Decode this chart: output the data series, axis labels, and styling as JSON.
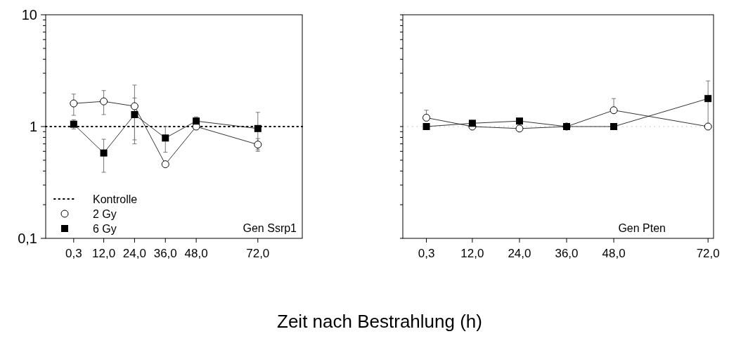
{
  "chart_data": [
    {
      "type": "line",
      "xlabel": "Zeit nach Bestrahlung (h)",
      "x": [
        0.3,
        12,
        24,
        36,
        48,
        72
      ],
      "xlim": [
        -10.6,
        89.3
      ],
      "ylim": [
        0.1,
        10
      ],
      "log": "y",
      "xticks": [
        {
          "value": 0.3,
          "label": "0,3"
        },
        {
          "value": 12,
          "label": "12,0"
        },
        {
          "value": 24,
          "label": "24,0"
        },
        {
          "value": 36,
          "label": "36,0"
        },
        {
          "value": 48,
          "label": "48,0"
        },
        {
          "value": 72,
          "label": "72,0"
        }
      ],
      "yticks": [
        {
          "value": 0.1,
          "label": "0,1"
        },
        {
          "value": 0.2,
          "label": null
        },
        {
          "value": 0.3,
          "label": null
        },
        {
          "value": 0.4,
          "label": null
        },
        {
          "value": 0.5,
          "label": null
        },
        {
          "value": 0.6,
          "label": null
        },
        {
          "value": 0.7,
          "label": null
        },
        {
          "value": 0.8,
          "label": null
        },
        {
          "value": 0.9,
          "label": null
        },
        1,
        {
          "value": 2,
          "label": null
        },
        {
          "value": 3,
          "label": null
        },
        {
          "value": 4,
          "label": null
        },
        {
          "value": 5,
          "label": null
        },
        {
          "value": 6,
          "label": null
        },
        {
          "value": 7,
          "label": null
        },
        {
          "value": 8,
          "label": null
        },
        {
          "value": 9,
          "label": null
        },
        10
      ],
      "legend": "bottom left",
      "annotations": [
        "Gen Ssrp1"
      ],
      "series": [
        {
          "name": "Kontrolle",
          "type": "line",
          "x": [
            -10.6,
            89.3
          ],
          "values": [
            1,
            1
          ],
          "color": "#000000",
          "line_style": "dotted",
          "marker": "none"
        },
        {
          "name": "2 Gy",
          "color": "#000000",
          "marker": "circle",
          "values": [
            1.61,
            1.68,
            1.52,
            0.46,
            1.0,
            0.69
          ],
          "errors": [
            [
              1.26,
              1.95
            ],
            [
              1.28,
              2.1
            ],
            [
              0.76,
              2.35
            ],
            null,
            null,
            [
              0.6,
              0.78
            ]
          ]
        },
        {
          "name": "6 Gy",
          "color": "#000000",
          "marker": "square",
          "values": [
            1.05,
            0.58,
            1.28,
            0.79,
            1.12,
            0.96
          ],
          "errors": [
            [
              0.95,
              1.15
            ],
            [
              0.39,
              0.77
            ],
            [
              0.7,
              1.8
            ],
            [
              0.59,
              1.0
            ],
            [
              1.05,
              1.22
            ],
            [
              0.62,
              1.34
            ]
          ]
        }
      ]
    },
    {
      "type": "line",
      "x": [
        0.3,
        12,
        24,
        36,
        48,
        72
      ],
      "xlim": [
        -5.7,
        73.4
      ],
      "ylim": [
        0.1,
        10
      ],
      "log": "y",
      "tick_labels": "x",
      "xticks": [
        {
          "value": 0.3,
          "label": "0,3"
        },
        {
          "value": 12,
          "label": "12,0"
        },
        {
          "value": 24,
          "label": "24,0"
        },
        {
          "value": 36,
          "label": "36,0"
        },
        {
          "value": 48,
          "label": "48,0"
        },
        {
          "value": 72,
          "label": "72,0"
        }
      ],
      "yticks": [
        {
          "value": 0.1,
          "label": null
        },
        {
          "value": 0.2,
          "label": null
        },
        {
          "value": 0.3,
          "label": null
        },
        {
          "value": 0.4,
          "label": null
        },
        {
          "value": 0.5,
          "label": null
        },
        {
          "value": 0.6,
          "label": null
        },
        {
          "value": 0.7,
          "label": null
        },
        {
          "value": 0.8,
          "label": null
        },
        {
          "value": 0.9,
          "label": null
        },
        {
          "value": 1,
          "label": null
        },
        {
          "value": 2,
          "label": null
        },
        {
          "value": 3,
          "label": null
        },
        {
          "value": 4,
          "label": null
        },
        {
          "value": 5,
          "label": null
        },
        {
          "value": 6,
          "label": null
        },
        {
          "value": 7,
          "label": null
        },
        {
          "value": 8,
          "label": null
        },
        {
          "value": 9,
          "label": null
        },
        {
          "value": 10,
          "label": null
        }
      ],
      "ref_lines": [
        {
          "axis": "y",
          "value": 1,
          "color": "#bbbbbb",
          "line_style": "dotted"
        }
      ],
      "annotations": [
        "Gen Pten"
      ],
      "series": [
        {
          "color": "#000000",
          "marker": "circle",
          "values": [
            1.2,
            1.0,
            0.96,
            1.0,
            1.4,
            1.0
          ],
          "errors": [
            [
              1.2,
              1.4
            ],
            null,
            null,
            null,
            [
              1.4,
              1.78
            ],
            null
          ]
        },
        {
          "color": "#000000",
          "marker": "square",
          "values": [
            1.0,
            1.07,
            1.12,
            1.0,
            1.0,
            1.78
          ],
          "errors": [
            null,
            null,
            null,
            null,
            null,
            [
              1.0,
              2.56
            ]
          ]
        }
      ]
    }
  ]
}
